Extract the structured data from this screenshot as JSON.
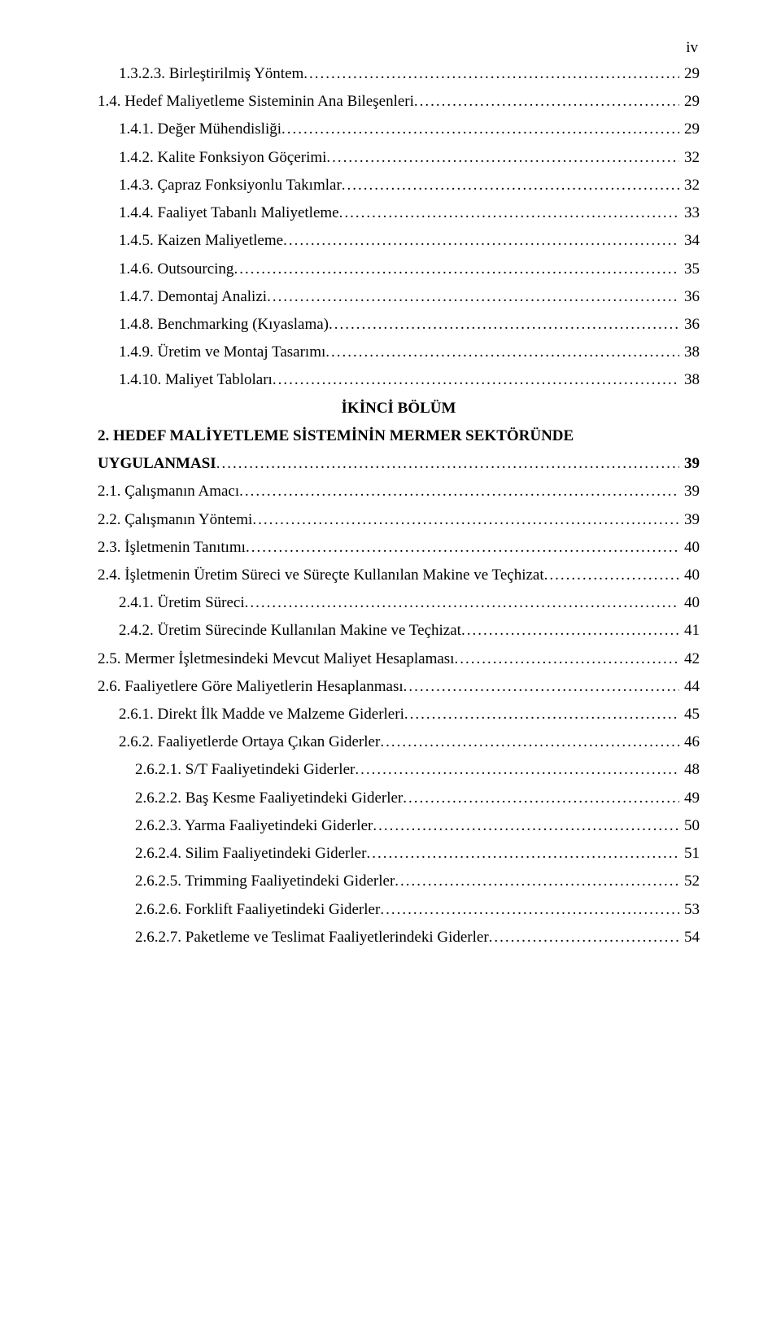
{
  "pageNumber": "iv",
  "section2Title": "İKİNCİ BÖLÜM",
  "entries": [
    {
      "idx": 0,
      "indent": 1,
      "label": "1.3.2.3. Birleştirilmiş Yöntem",
      "page": "29"
    },
    {
      "idx": 1,
      "indent": 0,
      "label": "1.4. Hedef Maliyetleme Sisteminin Ana Bileşenleri",
      "page": "29"
    },
    {
      "idx": 2,
      "indent": 1,
      "label": "1.4.1. Değer Mühendisliği",
      "page": "29"
    },
    {
      "idx": 3,
      "indent": 1,
      "label": "1.4.2. Kalite Fonksiyon Göçerimi",
      "page": "32"
    },
    {
      "idx": 4,
      "indent": 1,
      "label": "1.4.3. Çapraz Fonksiyonlu Takımlar",
      "page": "32"
    },
    {
      "idx": 5,
      "indent": 1,
      "label": "1.4.4. Faaliyet Tabanlı Maliyetleme",
      "page": "33"
    },
    {
      "idx": 6,
      "indent": 1,
      "label": "1.4.5. Kaizen Maliyetleme",
      "page": "34"
    },
    {
      "idx": 7,
      "indent": 1,
      "label": "1.4.6. Outsourcing",
      "page": "35"
    },
    {
      "idx": 8,
      "indent": 1,
      "label": "1.4.7. Demontaj Analizi",
      "page": "36"
    },
    {
      "idx": 9,
      "indent": 1,
      "label": "1.4.8. Benchmarking (Kıyaslama)",
      "page": "36"
    },
    {
      "idx": 10,
      "indent": 1,
      "label": "1.4.9. Üretim ve Montaj Tasarımı",
      "page": "38"
    },
    {
      "idx": 11,
      "indent": 1,
      "label": "1.4.10. Maliyet Tabloları",
      "page": "38"
    },
    {
      "idx": 12,
      "indent": 0,
      "label": "2. HEDEF MALİYETLEME SİSTEMİNİN MERMER SEKTÖRÜNDE UYGULANMASI",
      "page": "39",
      "bold": true
    },
    {
      "idx": 13,
      "indent": 0,
      "label": "2.1. Çalışmanın Amacı",
      "page": "39"
    },
    {
      "idx": 14,
      "indent": 0,
      "label": "2.2. Çalışmanın Yöntemi",
      "page": "39"
    },
    {
      "idx": 15,
      "indent": 0,
      "label": "2.3. İşletmenin Tanıtımı",
      "page": "40"
    },
    {
      "idx": 16,
      "indent": 0,
      "label": "2.4. İşletmenin Üretim Süreci ve Süreçte Kullanılan Makine ve Teçhizat",
      "page": "40"
    },
    {
      "idx": 17,
      "indent": 1,
      "label": "2.4.1. Üretim Süreci",
      "page": "40"
    },
    {
      "idx": 18,
      "indent": 1,
      "label": "2.4.2. Üretim Sürecinde Kullanılan Makine ve Teçhizat",
      "page": "41"
    },
    {
      "idx": 19,
      "indent": 0,
      "label": "2.5. Mermer İşletmesindeki Mevcut Maliyet Hesaplaması",
      "page": "42"
    },
    {
      "idx": 20,
      "indent": 0,
      "label": "2.6. Faaliyetlere Göre Maliyetlerin Hesaplanması",
      "page": "44"
    },
    {
      "idx": 21,
      "indent": 1,
      "label": "2.6.1. Direkt İlk Madde ve Malzeme Giderleri",
      "page": "45"
    },
    {
      "idx": 22,
      "indent": 1,
      "label": "2.6.2. Faaliyetlerde Ortaya Çıkan Giderler",
      "page": "46"
    },
    {
      "idx": 23,
      "indent": 2,
      "label": "2.6.2.1. S/T Faaliyetindeki Giderler",
      "page": "48"
    },
    {
      "idx": 24,
      "indent": 2,
      "label": "2.6.2.2. Baş Kesme Faaliyetindeki Giderler",
      "page": "49"
    },
    {
      "idx": 25,
      "indent": 2,
      "label": "2.6.2.3. Yarma Faaliyetindeki Giderler",
      "page": "50"
    },
    {
      "idx": 26,
      "indent": 2,
      "label": "2.6.2.4. Silim Faaliyetindeki Giderler",
      "page": "51"
    },
    {
      "idx": 27,
      "indent": 2,
      "label": "2.6.2.5. Trimming Faaliyetindeki Giderler",
      "page": "52"
    },
    {
      "idx": 28,
      "indent": 2,
      "label": "2.6.2.6. Forklift Faaliyetindeki Giderler",
      "page": "53"
    },
    {
      "idx": 29,
      "indent": 2,
      "label": "2.6.2.7. Paketleme ve Teslimat Faaliyetlerindeki Giderler",
      "page": "54"
    }
  ]
}
